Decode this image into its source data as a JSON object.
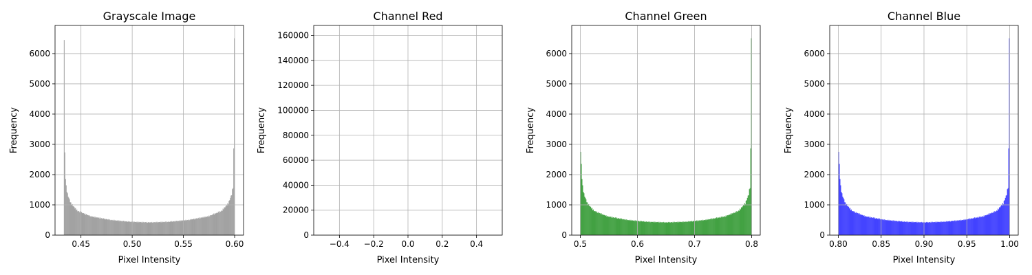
{
  "chart_data": [
    {
      "type": "bar",
      "title": "Grayscale Image",
      "xlabel": "Pixel Intensity",
      "ylabel": "Frequency",
      "xlim": [
        0.4247,
        0.6087
      ],
      "ylim": [
        0,
        6930
      ],
      "xticks": [
        "0.45",
        "0.50",
        "0.55",
        "0.60"
      ],
      "xtick_values": [
        0.45,
        0.5,
        0.55,
        0.6
      ],
      "yticks": [
        "0",
        "1000",
        "2000",
        "3000",
        "4000",
        "5000",
        "6000"
      ],
      "ytick_values": [
        0,
        1000,
        2000,
        3000,
        4000,
        5000,
        6000
      ],
      "grid": true,
      "color": "#808080",
      "opacity": 0.7,
      "bins": {
        "x_start": 0.4333,
        "x_end": 0.6,
        "count": 256,
        "anchors": [
          [
            0,
            6450
          ],
          [
            1,
            2700
          ],
          [
            2,
            1900
          ],
          [
            3,
            1600
          ],
          [
            5,
            1350
          ],
          [
            10,
            1050
          ],
          [
            20,
            800
          ],
          [
            40,
            620
          ],
          [
            70,
            500
          ],
          [
            100,
            440
          ],
          [
            128,
            420
          ],
          [
            156,
            440
          ],
          [
            186,
            500
          ],
          [
            216,
            620
          ],
          [
            236,
            800
          ],
          [
            246,
            1050
          ],
          [
            251,
            1350
          ],
          [
            253,
            1600
          ],
          [
            254,
            2800
          ],
          [
            255,
            6600
          ]
        ]
      }
    },
    {
      "type": "bar",
      "title": "Channel Red",
      "xlabel": "Pixel Intensity",
      "ylabel": "Frequency",
      "xlim": [
        -0.55,
        0.55
      ],
      "ylim": [
        0,
        168000
      ],
      "xticks": [
        "−0.4",
        "−0.2",
        "0.0",
        "0.2",
        "0.4"
      ],
      "xtick_values": [
        -0.4,
        -0.2,
        0.0,
        0.2,
        0.4
      ],
      "yticks": [
        "0",
        "20000",
        "40000",
        "60000",
        "80000",
        "100000",
        "120000",
        "140000",
        "160000"
      ],
      "ytick_values": [
        0,
        20000,
        40000,
        60000,
        80000,
        100000,
        120000,
        140000,
        160000
      ],
      "grid": true,
      "color": "#ff0000",
      "opacity": 0.7,
      "bins": {
        "x_start": -0.5,
        "x_end": 0.5,
        "count": 0,
        "anchors": []
      }
    },
    {
      "type": "bar",
      "title": "Channel Green",
      "xlabel": "Pixel Intensity",
      "ylabel": "Frequency",
      "xlim": [
        0.485,
        0.815
      ],
      "ylim": [
        0,
        6930
      ],
      "xticks": [
        "0.5",
        "0.6",
        "0.7",
        "0.8"
      ],
      "xtick_values": [
        0.5,
        0.6,
        0.7,
        0.8
      ],
      "yticks": [
        "0",
        "1000",
        "2000",
        "3000",
        "4000",
        "5000",
        "6000"
      ],
      "ytick_values": [
        0,
        1000,
        2000,
        3000,
        4000,
        5000,
        6000
      ],
      "grid": true,
      "color": "#008000",
      "opacity": 0.7,
      "bins": {
        "x_start": 0.5,
        "x_end": 0.8,
        "count": 256,
        "anchors": [
          [
            0,
            2750
          ],
          [
            2,
            1900
          ],
          [
            3,
            1600
          ],
          [
            5,
            1350
          ],
          [
            10,
            1050
          ],
          [
            20,
            800
          ],
          [
            40,
            620
          ],
          [
            70,
            500
          ],
          [
            100,
            440
          ],
          [
            128,
            420
          ],
          [
            156,
            440
          ],
          [
            186,
            500
          ],
          [
            216,
            620
          ],
          [
            236,
            800
          ],
          [
            246,
            1050
          ],
          [
            251,
            1350
          ],
          [
            253,
            1600
          ],
          [
            254,
            2800
          ],
          [
            255,
            6600
          ]
        ]
      }
    },
    {
      "type": "bar",
      "title": "Channel Blue",
      "xlabel": "Pixel Intensity",
      "ylabel": "Frequency",
      "xlim": [
        0.79,
        1.01
      ],
      "ylim": [
        0,
        6930
      ],
      "xticks": [
        "0.80",
        "0.85",
        "0.90",
        "0.95",
        "1.00"
      ],
      "xtick_values": [
        0.8,
        0.85,
        0.9,
        0.95,
        1.0
      ],
      "yticks": [
        "0",
        "1000",
        "2000",
        "3000",
        "4000",
        "5000",
        "6000"
      ],
      "ytick_values": [
        0,
        1000,
        2000,
        3000,
        4000,
        5000,
        6000
      ],
      "grid": true,
      "color": "#0000ff",
      "opacity": 0.7,
      "bins": {
        "x_start": 0.8,
        "x_end": 1.0,
        "count": 256,
        "anchors": [
          [
            0,
            2750
          ],
          [
            2,
            1900
          ],
          [
            3,
            1600
          ],
          [
            5,
            1350
          ],
          [
            10,
            1050
          ],
          [
            20,
            800
          ],
          [
            40,
            620
          ],
          [
            70,
            500
          ],
          [
            100,
            440
          ],
          [
            128,
            420
          ],
          [
            156,
            440
          ],
          [
            186,
            500
          ],
          [
            216,
            620
          ],
          [
            236,
            800
          ],
          [
            246,
            1050
          ],
          [
            251,
            1350
          ],
          [
            253,
            1600
          ],
          [
            254,
            2800
          ],
          [
            255,
            6600
          ]
        ]
      }
    }
  ]
}
